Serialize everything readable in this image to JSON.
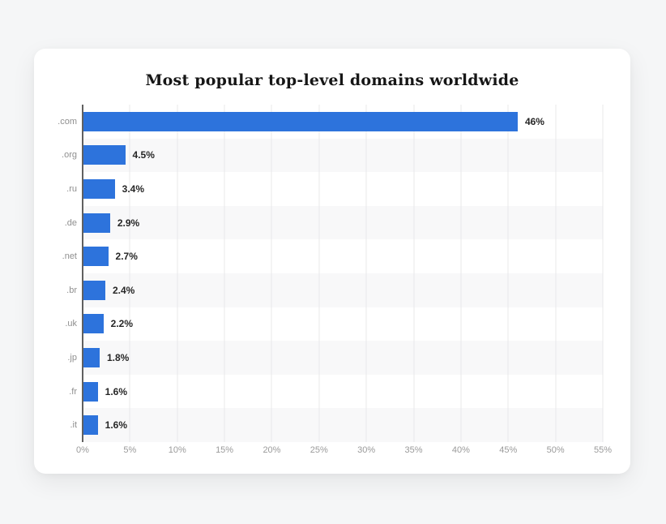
{
  "page": {
    "background_color": "#f5f6f7",
    "card_color": "#ffffff"
  },
  "chart_data": {
    "type": "bar",
    "orientation": "horizontal",
    "title": "Most popular top-level domains worldwide",
    "categories": [
      ".com",
      ".org",
      ".ru",
      ".de",
      ".net",
      ".br",
      ".uk",
      ".jp",
      ".fr",
      ".it"
    ],
    "values": [
      46,
      4.5,
      3.4,
      2.9,
      2.7,
      2.4,
      2.2,
      1.8,
      1.6,
      1.6
    ],
    "value_labels": [
      "46%",
      "4.5%",
      "3.4%",
      "2.9%",
      "2.7%",
      "2.4%",
      "2.2%",
      "1.8%",
      "1.6%",
      "1.6%"
    ],
    "xlabel": "",
    "ylabel": "",
    "xlim": [
      0,
      55
    ],
    "x_tick_step": 5,
    "x_ticks": [
      "0%",
      "5%",
      "10%",
      "15%",
      "20%",
      "25%",
      "30%",
      "35%",
      "40%",
      "45%",
      "50%",
      "55%"
    ],
    "grid": true,
    "legend": false,
    "zebra_striping": true,
    "bar_color": "#2d73dc",
    "stripe_color": "#f8f8f9",
    "gridline_color": "#e9e9ea",
    "axis_line_color": "#606060",
    "category_label_color": "#8f8f8f",
    "value_label_color": "#262626",
    "tick_label_color": "#9a9a9a",
    "title_color": "#161616"
  }
}
